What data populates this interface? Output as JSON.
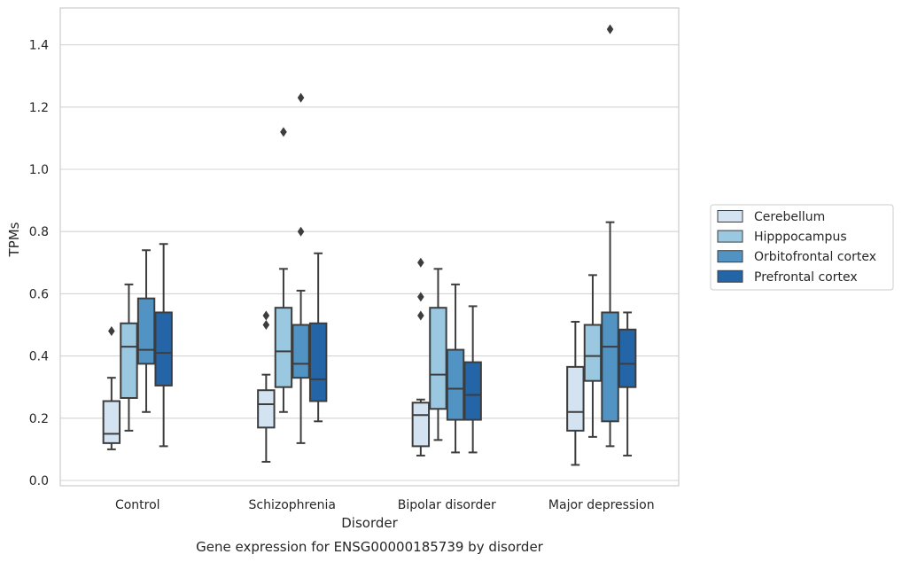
{
  "chart_data": {
    "type": "box",
    "title": "Gene expression for ENSG00000185739 by disorder",
    "xlabel": "Disorder",
    "ylabel": "TPMs",
    "ylim": [
      -0.02,
      1.52
    ],
    "yticks": [
      "0.0",
      "0.2",
      "0.4",
      "0.6",
      "0.8",
      "1.0",
      "1.2",
      "1.4"
    ],
    "grid": true,
    "legend_position": "right",
    "categories": [
      "Control",
      "Schizophrenia",
      "Bipolar disorder",
      "Major depression"
    ],
    "series": [
      {
        "name": "Cerebellum",
        "color": "#d3e3f2",
        "boxes": [
          {
            "min": 0.1,
            "q1": 0.12,
            "median": 0.15,
            "q3": 0.255,
            "max": 0.33,
            "outliers": [
              0.48
            ]
          },
          {
            "min": 0.06,
            "q1": 0.17,
            "median": 0.245,
            "q3": 0.29,
            "max": 0.34,
            "outliers": [
              0.5,
              0.53
            ]
          },
          {
            "min": 0.08,
            "q1": 0.11,
            "median": 0.21,
            "q3": 0.25,
            "max": 0.26,
            "outliers": [
              0.53,
              0.59,
              0.7
            ]
          },
          {
            "min": 0.05,
            "q1": 0.16,
            "median": 0.22,
            "q3": 0.365,
            "max": 0.51,
            "outliers": []
          }
        ]
      },
      {
        "name": "Hipppocampus",
        "color": "#9ac8e0",
        "boxes": [
          {
            "min": 0.16,
            "q1": 0.265,
            "median": 0.43,
            "q3": 0.505,
            "max": 0.63,
            "outliers": []
          },
          {
            "min": 0.22,
            "q1": 0.3,
            "median": 0.415,
            "q3": 0.555,
            "max": 0.68,
            "outliers": [
              1.12
            ]
          },
          {
            "min": 0.13,
            "q1": 0.23,
            "median": 0.34,
            "q3": 0.555,
            "max": 0.68,
            "outliers": []
          },
          {
            "min": 0.14,
            "q1": 0.32,
            "median": 0.4,
            "q3": 0.5,
            "max": 0.66,
            "outliers": []
          }
        ]
      },
      {
        "name": "Orbitofrontal cortex",
        "color": "#5193c3",
        "boxes": [
          {
            "min": 0.22,
            "q1": 0.375,
            "median": 0.42,
            "q3": 0.585,
            "max": 0.74,
            "outliers": []
          },
          {
            "min": 0.12,
            "q1": 0.33,
            "median": 0.375,
            "q3": 0.5,
            "max": 0.61,
            "outliers": [
              0.8,
              1.23
            ]
          },
          {
            "min": 0.09,
            "q1": 0.195,
            "median": 0.295,
            "q3": 0.42,
            "max": 0.63,
            "outliers": []
          },
          {
            "min": 0.11,
            "q1": 0.19,
            "median": 0.43,
            "q3": 0.54,
            "max": 0.83,
            "outliers": [
              1.45
            ]
          }
        ]
      },
      {
        "name": "Prefrontal cortex",
        "color": "#2465a8",
        "boxes": [
          {
            "min": 0.11,
            "q1": 0.305,
            "median": 0.41,
            "q3": 0.54,
            "max": 0.76,
            "outliers": []
          },
          {
            "min": 0.19,
            "q1": 0.255,
            "median": 0.325,
            "q3": 0.505,
            "max": 0.73,
            "outliers": []
          },
          {
            "min": 0.09,
            "q1": 0.195,
            "median": 0.275,
            "q3": 0.38,
            "max": 0.56,
            "outliers": []
          },
          {
            "min": 0.08,
            "q1": 0.3,
            "median": 0.375,
            "q3": 0.485,
            "max": 0.54,
            "outliers": []
          }
        ]
      }
    ]
  }
}
